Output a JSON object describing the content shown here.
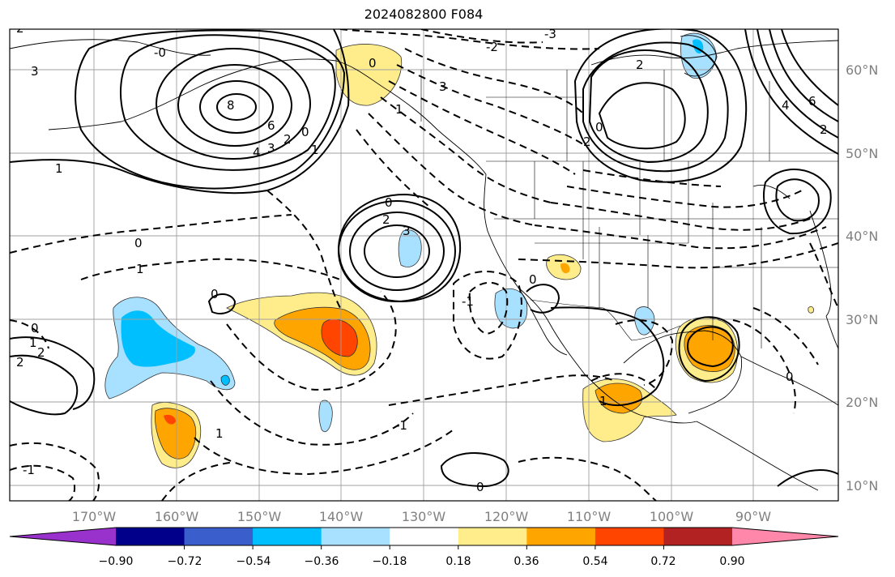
{
  "title": "2024082800 F084",
  "map": {
    "lon_ticks": [
      "170°W",
      "160°W",
      "150°W",
      "140°W",
      "130°W",
      "120°W",
      "110°W",
      "100°W",
      "90°W"
    ],
    "lat_ticks": [
      "60°N",
      "50°N",
      "40°N",
      "30°N",
      "20°N",
      "10°N"
    ]
  },
  "colorbar": {
    "tick_labels": [
      "−0.90",
      "−0.72",
      "−0.54",
      "−0.36",
      "−0.18",
      "0.18",
      "0.36",
      "0.54",
      "0.72",
      "0.90"
    ],
    "colors": [
      "#9932cc",
      "#00008b",
      "#3a5fcd",
      "#00bfff",
      "#a8e0ff",
      "#ffffff",
      "#ffec8b",
      "#ffa500",
      "#ff4500",
      "#b22222",
      "#ff88aa"
    ]
  },
  "contour_labels": [
    "-0",
    "3",
    "8",
    "6",
    "4",
    "3",
    "2",
    "0",
    "1",
    "1",
    "2",
    "0",
    "-2",
    "-3",
    "3",
    "1",
    "0",
    "2",
    "3",
    "0",
    "0",
    "1",
    "2",
    "0",
    "1",
    "-1",
    "1",
    "2",
    "2",
    "0",
    "2",
    "6",
    "4",
    "2",
    "0",
    "-1",
    "1",
    "0",
    "-1",
    "0"
  ]
}
